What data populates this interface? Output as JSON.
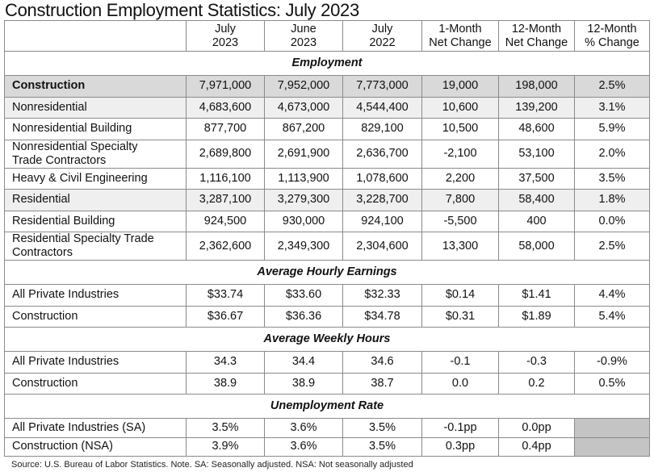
{
  "title": "Construction Employment Statistics: July 2023",
  "columns": [
    [
      "July",
      "2023"
    ],
    [
      "June",
      "2023"
    ],
    [
      "July",
      "2022"
    ],
    [
      "1-Month",
      "Net Change"
    ],
    [
      "12-Month",
      "Net Change"
    ],
    [
      "12-Month",
      "% Change"
    ]
  ],
  "sections": [
    {
      "heading": "Employment",
      "rows": [
        {
          "label": "Construction",
          "shade": "dark",
          "values": [
            "7,971,000",
            "7,952,000",
            "7,773,000",
            "19,000",
            "198,000",
            "2.5%"
          ]
        },
        {
          "label": "Nonresidential",
          "shade": "light",
          "values": [
            "4,683,600",
            "4,673,000",
            "4,544,400",
            "10,600",
            "139,200",
            "3.1%"
          ]
        },
        {
          "label": "Nonresidential Building",
          "shade": "",
          "values": [
            "877,700",
            "867,200",
            "829,100",
            "10,500",
            "48,600",
            "5.9%"
          ]
        },
        {
          "label": "Nonresidential Specialty Trade Contractors",
          "shade": "",
          "values": [
            "2,689,800",
            "2,691,900",
            "2,636,700",
            "-2,100",
            "53,100",
            "2.0%"
          ]
        },
        {
          "label": "Heavy & Civil Engineering",
          "shade": "",
          "values": [
            "1,116,100",
            "1,113,900",
            "1,078,600",
            "2,200",
            "37,500",
            "3.5%"
          ]
        },
        {
          "label": "Residential",
          "shade": "light",
          "values": [
            "3,287,100",
            "3,279,300",
            "3,228,700",
            "7,800",
            "58,400",
            "1.8%"
          ]
        },
        {
          "label": "Residential Building",
          "shade": "",
          "values": [
            "924,500",
            "930,000",
            "924,100",
            "-5,500",
            "400",
            "0.0%"
          ]
        },
        {
          "label": "Residential Specialty Trade Contractors",
          "shade": "",
          "values": [
            "2,362,600",
            "2,349,300",
            "2,304,600",
            "13,300",
            "58,000",
            "2.5%"
          ]
        }
      ]
    },
    {
      "heading": "Average Hourly Earnings",
      "rows": [
        {
          "label": "All Private Industries",
          "shade": "",
          "values": [
            "$33.74",
            "$33.60",
            "$32.33",
            "$0.14",
            "$1.41",
            "4.4%"
          ]
        },
        {
          "label": "Construction",
          "shade": "",
          "values": [
            "$36.67",
            "$36.36",
            "$34.78",
            "$0.31",
            "$1.89",
            "5.4%"
          ]
        }
      ]
    },
    {
      "heading": "Average Weekly Hours",
      "rows": [
        {
          "label": "All Private Industries",
          "shade": "",
          "values": [
            "34.3",
            "34.4",
            "34.6",
            "-0.1",
            "-0.3",
            "-0.9%"
          ]
        },
        {
          "label": "Construction",
          "shade": "",
          "values": [
            "38.9",
            "38.9",
            "38.7",
            "0.0",
            "0.2",
            "0.5%"
          ]
        }
      ]
    },
    {
      "heading": "Unemployment Rate",
      "rows": [
        {
          "label": "All Private Industries (SA)",
          "shade": "",
          "values": [
            "3.5%",
            "3.6%",
            "3.5%",
            "-0.1pp",
            "0.0pp",
            null
          ]
        },
        {
          "label": "Construction (NSA)",
          "shade": "",
          "values": [
            "3.9%",
            "3.6%",
            "3.5%",
            "0.3pp",
            "0.4pp",
            null
          ]
        }
      ]
    }
  ],
  "source": "Source: U.S. Bureau of Labor Statistics.  Note. SA: Seasonally adjusted.  NSA: Not seasonally adjusted"
}
